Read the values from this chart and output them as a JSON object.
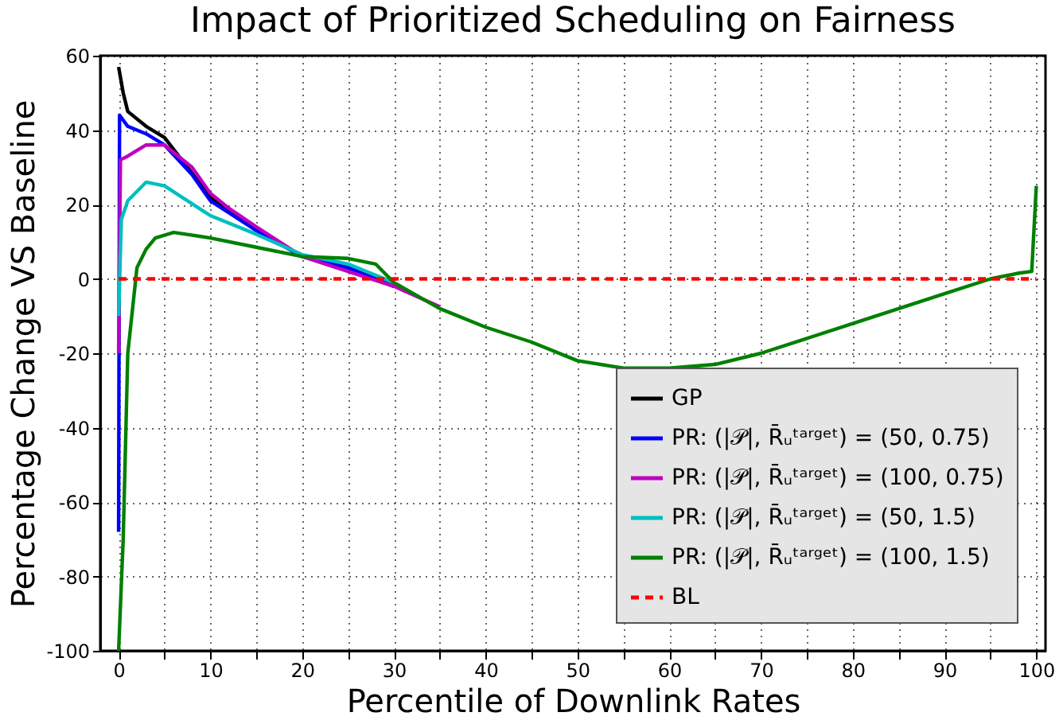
{
  "chart_data": {
    "type": "line",
    "title": "Impact of Prioritized Scheduling on Fairness",
    "xlabel": "Percentile of Downlink Rates",
    "ylabel": "Percentage Change VS Baseline",
    "xlim": [
      -2,
      101
    ],
    "ylim": [
      -100,
      60
    ],
    "xticks": [
      0,
      {
        "value": 5,
        "label": null
      },
      10,
      {
        "value": 15,
        "label": null
      },
      20,
      {
        "value": 25,
        "label": null
      },
      30,
      {
        "value": 35,
        "label": null
      },
      40,
      {
        "value": 45,
        "label": null
      },
      50,
      {
        "value": 55,
        "label": null
      },
      60,
      {
        "value": 65,
        "label": null
      },
      70,
      {
        "value": 75,
        "label": null
      },
      80,
      {
        "value": 85,
        "label": null
      },
      90,
      {
        "value": 95,
        "label": null
      },
      100
    ],
    "yticks": [
      -100,
      -80,
      -60,
      -40,
      -20,
      0,
      20,
      40,
      60
    ],
    "grid": true,
    "legend": "bottom right",
    "marker": "none",
    "series": [
      {
        "name": "GP",
        "color": "#000000",
        "line_style": "solid",
        "x": [
          0,
          0.5,
          1,
          3,
          5,
          10,
          15,
          20,
          25,
          30
        ],
        "values": [
          57,
          50,
          45,
          41,
          38,
          22,
          13,
          6,
          3,
          -2
        ]
      },
      {
        "name": "PR: (|𝒫|, R̄ᵤᵗᵃʳᵍᵉᵗ) = (50, 0.75)",
        "color": "#0000ff",
        "line_style": "solid",
        "x": [
          0,
          0.1,
          1,
          3,
          5,
          8,
          10,
          15,
          20,
          25,
          30
        ],
        "values": [
          -68,
          44,
          41,
          39,
          36,
          28,
          21,
          13,
          6,
          3,
          -2
        ]
      },
      {
        "name": "PR: (|𝒫|, R̄ᵤᵗᵃʳᵍᵉᵗ) = (100, 0.75)",
        "color": "#bf00bf",
        "line_style": "solid",
        "x": [
          0,
          0.2,
          1,
          3,
          5,
          8,
          10,
          12,
          15,
          20,
          25,
          30,
          35
        ],
        "values": [
          -20,
          32,
          33,
          36,
          36,
          30,
          23,
          19,
          14,
          6,
          2,
          -2,
          -7.5
        ]
      },
      {
        "name": "PR: (|𝒫|, R̄ᵤᵗᵃʳᵍᵉᵗ) = (50, 1.5)",
        "color": "#00bfbf",
        "line_style": "solid",
        "x": [
          0,
          0.3,
          1,
          3,
          5,
          10,
          15,
          20,
          25,
          30
        ],
        "values": [
          -10,
          16,
          21,
          26,
          25,
          17,
          12,
          6.5,
          4,
          -1
        ]
      },
      {
        "name": "PR: (|𝒫|, R̄ᵤᵗᵃʳᵍᵉᵗ) = (100, 1.5)",
        "color": "#008000",
        "line_style": "solid",
        "x": [
          0,
          0.5,
          1,
          2,
          3,
          4,
          6,
          10,
          15,
          20,
          25,
          28,
          30,
          35,
          40,
          45,
          50,
          55,
          60,
          65,
          70,
          75,
          80,
          85,
          90,
          95,
          98,
          99.5,
          100
        ],
        "values": [
          -100,
          -70,
          -20,
          3,
          8,
          11,
          12.5,
          11,
          8.5,
          6,
          5.5,
          4,
          -1,
          -8,
          -13,
          -17,
          -22,
          -24,
          -24,
          -23,
          -20,
          -16,
          -12,
          -8,
          -4,
          0,
          1.5,
          2,
          25
        ]
      },
      {
        "name": "BL",
        "color": "#ff0000",
        "line_style": "dashed",
        "x": [
          0,
          100
        ],
        "values": [
          0,
          0
        ]
      }
    ]
  }
}
